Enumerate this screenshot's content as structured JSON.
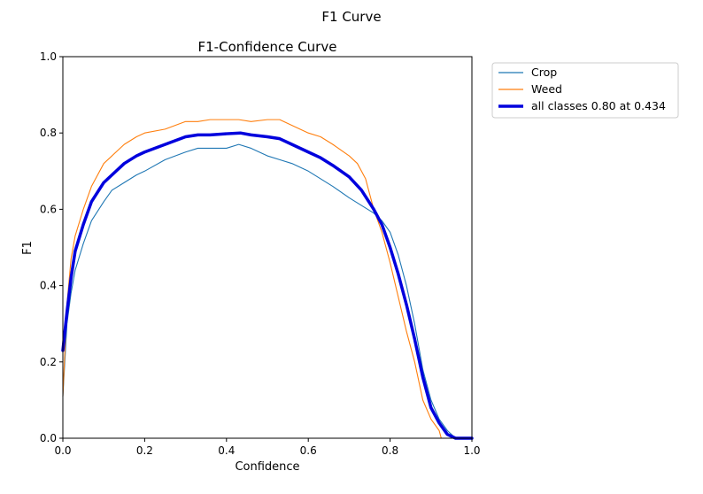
{
  "figure_title": "F1 Curve",
  "chart_data": {
    "type": "line",
    "title": "F1-Confidence Curve",
    "xlabel": "Confidence",
    "ylabel": "F1",
    "xlim": [
      0,
      1
    ],
    "ylim": [
      0,
      1
    ],
    "xticks": [
      "0.0",
      "0.2",
      "0.4",
      "0.6",
      "0.8",
      "1.0"
    ],
    "yticks": [
      "0.0",
      "0.2",
      "0.4",
      "0.6",
      "0.8",
      "1.0"
    ],
    "grid": false,
    "legend_position": "outside-top-right",
    "series": [
      {
        "name": "Crop",
        "color": "#1f77b4",
        "x": [
          0.0,
          0.01,
          0.02,
          0.03,
          0.05,
          0.07,
          0.1,
          0.12,
          0.15,
          0.18,
          0.2,
          0.25,
          0.3,
          0.33,
          0.36,
          0.4,
          0.43,
          0.46,
          0.5,
          0.53,
          0.56,
          0.6,
          0.63,
          0.66,
          0.7,
          0.73,
          0.76,
          0.78,
          0.8,
          0.82,
          0.84,
          0.86,
          0.88,
          0.9,
          0.92,
          0.94,
          0.95,
          0.96,
          0.98,
          1.0
        ],
        "y": [
          0.11,
          0.3,
          0.38,
          0.44,
          0.51,
          0.57,
          0.62,
          0.65,
          0.67,
          0.69,
          0.7,
          0.73,
          0.75,
          0.76,
          0.76,
          0.76,
          0.77,
          0.76,
          0.74,
          0.73,
          0.72,
          0.7,
          0.68,
          0.66,
          0.63,
          0.61,
          0.59,
          0.57,
          0.54,
          0.48,
          0.4,
          0.3,
          0.18,
          0.1,
          0.05,
          0.02,
          0.01,
          0.0,
          0.0,
          0.0
        ]
      },
      {
        "name": "Weed",
        "color": "#ff7f0e",
        "x": [
          0.0,
          0.01,
          0.02,
          0.03,
          0.05,
          0.07,
          0.1,
          0.12,
          0.15,
          0.18,
          0.2,
          0.25,
          0.3,
          0.33,
          0.36,
          0.4,
          0.43,
          0.46,
          0.5,
          0.53,
          0.56,
          0.6,
          0.63,
          0.66,
          0.7,
          0.72,
          0.74,
          0.76,
          0.78,
          0.8,
          0.82,
          0.84,
          0.86,
          0.88,
          0.9,
          0.92,
          0.925,
          0.93,
          1.0
        ],
        "y": [
          0.11,
          0.35,
          0.47,
          0.53,
          0.6,
          0.66,
          0.72,
          0.74,
          0.77,
          0.79,
          0.8,
          0.81,
          0.83,
          0.83,
          0.835,
          0.835,
          0.835,
          0.83,
          0.835,
          0.835,
          0.82,
          0.8,
          0.79,
          0.77,
          0.74,
          0.72,
          0.68,
          0.6,
          0.54,
          0.46,
          0.37,
          0.28,
          0.2,
          0.1,
          0.05,
          0.02,
          0.0,
          0.0,
          0.0
        ]
      },
      {
        "name": "all classes 0.80 at 0.434",
        "color": "#0000dd",
        "bold": true,
        "x": [
          0.0,
          0.01,
          0.02,
          0.03,
          0.05,
          0.07,
          0.1,
          0.12,
          0.15,
          0.18,
          0.2,
          0.25,
          0.3,
          0.33,
          0.36,
          0.4,
          0.434,
          0.46,
          0.5,
          0.53,
          0.56,
          0.6,
          0.63,
          0.66,
          0.7,
          0.73,
          0.76,
          0.78,
          0.8,
          0.82,
          0.84,
          0.86,
          0.88,
          0.9,
          0.92,
          0.94,
          0.95,
          0.96,
          0.98,
          1.0
        ],
        "y": [
          0.23,
          0.33,
          0.42,
          0.49,
          0.56,
          0.62,
          0.67,
          0.69,
          0.72,
          0.74,
          0.75,
          0.77,
          0.79,
          0.795,
          0.795,
          0.798,
          0.8,
          0.795,
          0.79,
          0.785,
          0.77,
          0.75,
          0.735,
          0.715,
          0.685,
          0.65,
          0.6,
          0.56,
          0.5,
          0.43,
          0.35,
          0.26,
          0.16,
          0.08,
          0.04,
          0.01,
          0.005,
          0.0,
          0.0,
          0.0
        ]
      }
    ]
  }
}
